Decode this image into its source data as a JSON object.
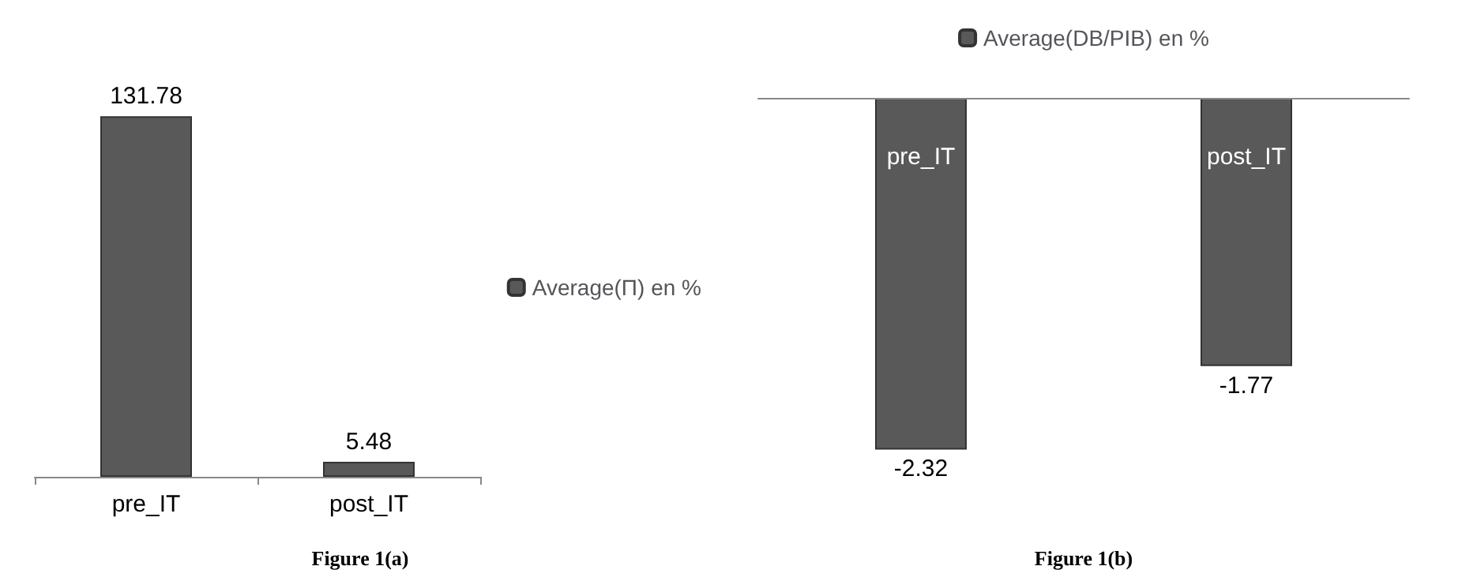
{
  "chart_data": [
    {
      "type": "bar",
      "categories": [
        "pre_IT",
        "post_IT"
      ],
      "series": [
        {
          "name": "Average(Π) en %",
          "color": "#595959",
          "values": [
            131.78,
            5.48
          ]
        }
      ],
      "data_labels": true,
      "legend": "right",
      "annotations": [
        "Figure 1(a)"
      ]
    },
    {
      "type": "bar",
      "categories": [
        "pre_IT",
        "post_IT"
      ],
      "series": [
        {
          "name": "Average(DB/PIB) en %",
          "color": "#595959",
          "values": [
            -2.32,
            -1.77
          ]
        }
      ],
      "data_labels": true,
      "legend": "top",
      "annotations": [
        "Figure 1(b)"
      ]
    }
  ]
}
